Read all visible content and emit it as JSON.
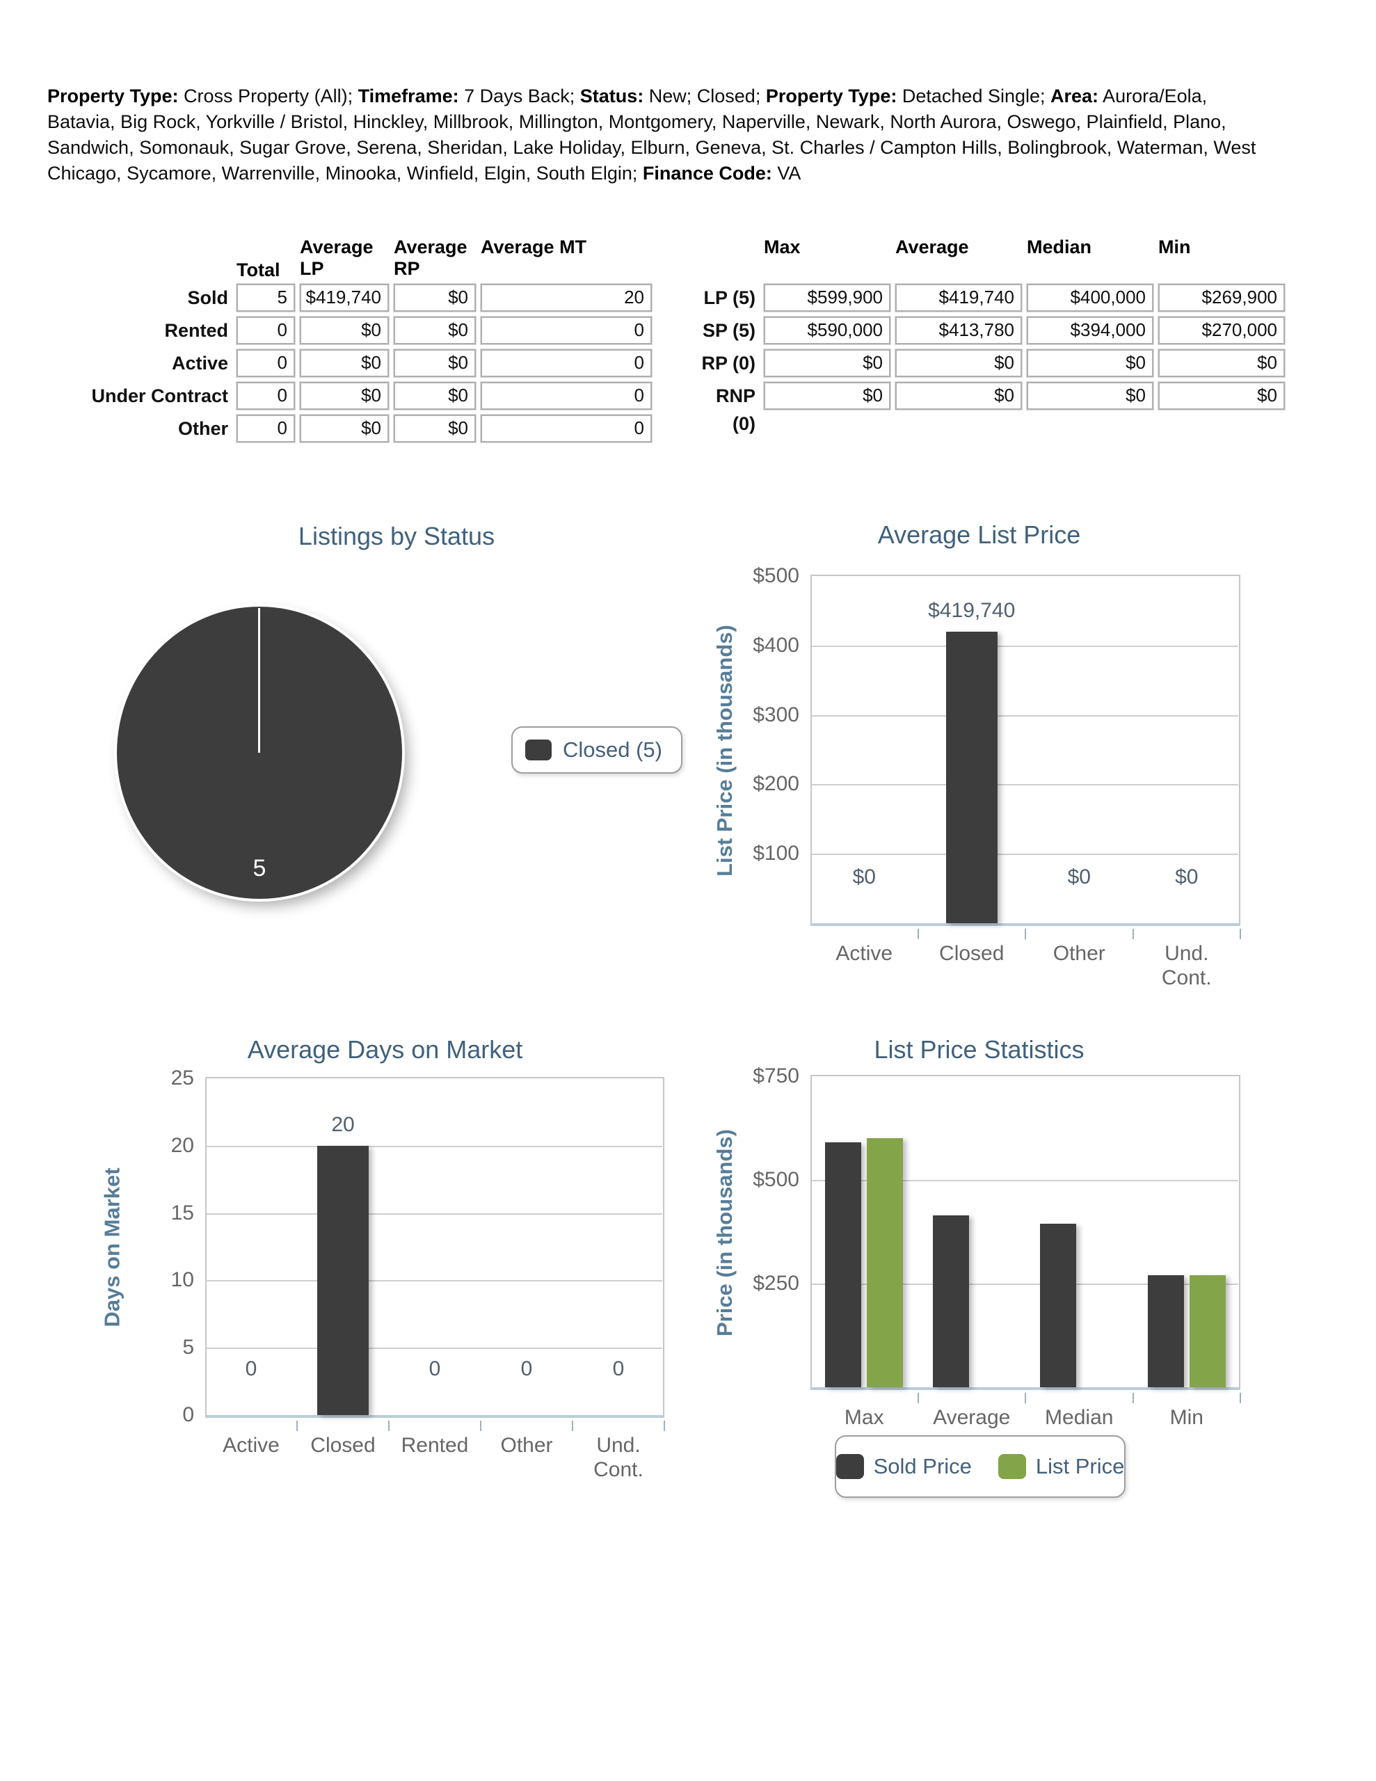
{
  "filters": {
    "segments": [
      {
        "label": "Property Type:",
        "value": " Cross Property (All); "
      },
      {
        "label": "Timeframe:",
        "value": " 7 Days Back; "
      },
      {
        "label": "Status:",
        "value": " New; Closed; "
      },
      {
        "label": "Property Type:",
        "value": " Detached Single; "
      },
      {
        "label": "Area:",
        "value": " Aurora/Eola, Batavia, Big Rock, Yorkville / Bristol, Hinckley, Millbrook, Millington, Montgomery, Naperville, Newark, North Aurora, Oswego, Plainfield, Plano, Sandwich, Somonauk, Sugar Grove, Serena, Sheridan, Lake Holiday, Elburn, Geneva, St. Charles / Campton Hills, Bolingbrook, Waterman, West Chicago, Sycamore, Warrenville, Minooka, Winfield, Elgin, South Elgin; "
      },
      {
        "label": "Finance Code:",
        "value": " VA"
      }
    ]
  },
  "status_table": {
    "columns": [
      "Total",
      "Average LP",
      "Average RP",
      "Average MT"
    ],
    "rows": [
      {
        "label": "Sold",
        "values": [
          "5",
          "$419,740",
          "$0",
          "20"
        ]
      },
      {
        "label": "Rented",
        "values": [
          "0",
          "$0",
          "$0",
          "0"
        ]
      },
      {
        "label": "Active",
        "values": [
          "0",
          "$0",
          "$0",
          "0"
        ]
      },
      {
        "label": "Under Contract",
        "values": [
          "0",
          "$0",
          "$0",
          "0"
        ]
      },
      {
        "label": "Other",
        "values": [
          "0",
          "$0",
          "$0",
          "0"
        ]
      }
    ]
  },
  "price_table": {
    "columns": [
      "Max",
      "Average",
      "Median",
      "Min"
    ],
    "rows": [
      {
        "label": "LP (5)",
        "values": [
          "$599,900",
          "$419,740",
          "$400,000",
          "$269,900"
        ]
      },
      {
        "label": "SP (5)",
        "values": [
          "$590,000",
          "$413,780",
          "$394,000",
          "$270,000"
        ]
      },
      {
        "label": "RP (0)",
        "values": [
          "$0",
          "$0",
          "$0",
          "$0"
        ]
      },
      {
        "label": "RNP (0)",
        "values": [
          "$0",
          "$0",
          "$0",
          "$0"
        ]
      }
    ]
  },
  "palette": {
    "bar_dark": "#3d3d3d",
    "bar_green": "#84a44a",
    "heading_blue": "#40617c",
    "axis_label_blue": "#567d99"
  },
  "chart_data": [
    {
      "type": "pie",
      "title": "Listings by Status",
      "slices": [
        {
          "label": "Closed",
          "value": 5,
          "color": "#3d3d3d"
        }
      ],
      "slice_label": "5",
      "legend": [
        {
          "label": "Closed (5)",
          "color": "#3d3d3d"
        }
      ],
      "legend_position": "right"
    },
    {
      "type": "bar",
      "title": "Average List Price",
      "ylabel": "List Price (in thousands)",
      "ylim": [
        0,
        500
      ],
      "grid": true,
      "yticks": [
        {
          "label": "$500",
          "value": 500
        },
        {
          "label": "$400",
          "value": 400
        },
        {
          "label": "$300",
          "value": 300
        },
        {
          "label": "$200",
          "value": 200
        },
        {
          "label": "$100",
          "value": 100
        }
      ],
      "categories": [
        "Active",
        "Closed",
        "Other",
        "Und.\nCont."
      ],
      "series": [
        {
          "name": "List Price",
          "color": "#3d3d3d",
          "values": [
            0,
            419.74,
            0,
            0
          ],
          "labels": [
            "$0",
            "$419,740",
            "$0",
            "$0"
          ]
        }
      ]
    },
    {
      "type": "bar",
      "title": "Average Days on Market",
      "ylabel": "Days on Market",
      "ylim": [
        0,
        25
      ],
      "grid": true,
      "yticks": [
        {
          "label": "25",
          "value": 25
        },
        {
          "label": "20",
          "value": 20
        },
        {
          "label": "15",
          "value": 15
        },
        {
          "label": "10",
          "value": 10
        },
        {
          "label": "5",
          "value": 5
        },
        {
          "label": "0",
          "value": 0
        }
      ],
      "categories": [
        "Active",
        "Closed",
        "Rented",
        "Other",
        "Und.\nCont."
      ],
      "series": [
        {
          "name": "Days on Market",
          "color": "#3d3d3d",
          "values": [
            0,
            20,
            0,
            0,
            0
          ],
          "labels": [
            "0",
            "20",
            "0",
            "0",
            "0"
          ]
        }
      ]
    },
    {
      "type": "bar",
      "title": "List Price Statistics",
      "ylabel": "Price (in thousands)",
      "ylim": [
        0,
        750
      ],
      "grid": true,
      "yticks": [
        {
          "label": "$750",
          "value": 750
        },
        {
          "label": "$500",
          "value": 500
        },
        {
          "label": "$250",
          "value": 250
        }
      ],
      "categories": [
        "Max",
        "Average",
        "Median",
        "Min"
      ],
      "series": [
        {
          "name": "Sold Price",
          "color": "#3d3d3d",
          "values": [
            590,
            413.78,
            394,
            270
          ]
        },
        {
          "name": "List Price",
          "color": "#84a44a",
          "values": [
            599.9,
            null,
            null,
            269.9
          ]
        }
      ],
      "legend": [
        {
          "label": "Sold Price",
          "color": "#3d3d3d"
        },
        {
          "label": "List Price",
          "color": "#84a44a"
        }
      ],
      "legend_position": "bottom"
    }
  ]
}
